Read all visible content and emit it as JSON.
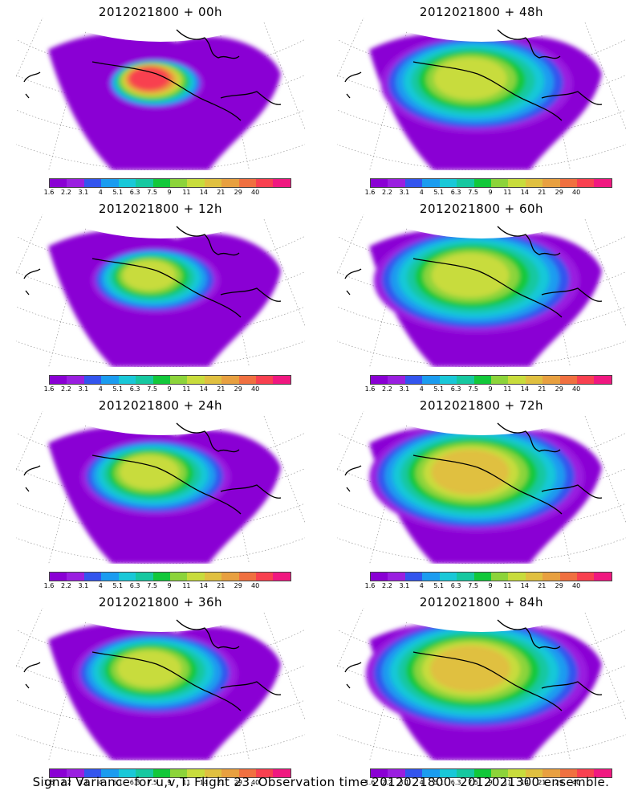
{
  "panels": [
    {
      "title": "2012021800 + 00h",
      "forecast_hour": 0,
      "peak_level": 12,
      "spread": 0.55
    },
    {
      "title": "2012021800 + 48h",
      "forecast_hour": 48,
      "peak_level": 8,
      "spread": 1.25
    },
    {
      "title": "2012021800 + 12h",
      "forecast_hour": 12,
      "peak_level": 8,
      "spread": 0.8
    },
    {
      "title": "2012021800 + 60h",
      "forecast_hour": 60,
      "peak_level": 8,
      "spread": 1.35
    },
    {
      "title": "2012021800 + 24h",
      "forecast_hour": 24,
      "peak_level": 8,
      "spread": 0.95
    },
    {
      "title": "2012021800 + 72h",
      "forecast_hour": 72,
      "peak_level": 9,
      "spread": 1.4
    },
    {
      "title": "2012021800 + 36h",
      "forecast_hour": 36,
      "peak_level": 8,
      "spread": 1.05
    },
    {
      "title": "2012021800 + 84h",
      "forecast_hour": 84,
      "peak_level": 9,
      "spread": 1.45
    }
  ],
  "colorbar": {
    "colors": [
      "#8a00d4",
      "#9a1fe0",
      "#3355ee",
      "#1b9cf0",
      "#19c8d8",
      "#16c8a0",
      "#12c83a",
      "#8cd43a",
      "#c8dc3c",
      "#e0c040",
      "#e8a040",
      "#f07040",
      "#f84050",
      "#f01880"
    ],
    "labels": [
      "1.6",
      "2.2",
      "3.1",
      "4",
      "5.1",
      "6.3",
      "7.5",
      "9",
      "11",
      "14",
      "21",
      "29",
      "40"
    ]
  },
  "caption": "Signal Variance for u,v,T. Flight 23. Observation time 2012021800. 2012021300 ensemble."
}
